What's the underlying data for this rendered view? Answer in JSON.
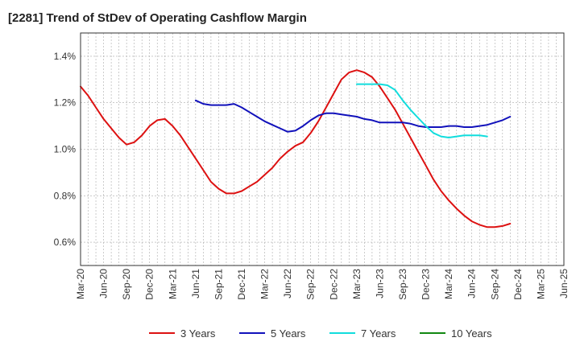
{
  "chart_data": {
    "type": "line",
    "title": "[2281]  Trend of StDev of Operating Cashflow Margin",
    "xlabel": "",
    "ylabel": "",
    "x_ticks": [
      "Mar-20",
      "Jun-20",
      "Sep-20",
      "Dec-20",
      "Mar-21",
      "Jun-21",
      "Sep-21",
      "Dec-21",
      "Mar-22",
      "Jun-22",
      "Sep-22",
      "Dec-22",
      "Mar-23",
      "Jun-23",
      "Sep-23",
      "Dec-23",
      "Mar-24",
      "Jun-24",
      "Sep-24",
      "Dec-24",
      "Mar-25",
      "Jun-25"
    ],
    "y_ticks": [
      0.6,
      0.8,
      1.0,
      1.2,
      1.4
    ],
    "y_tick_labels": [
      "0.6%",
      "0.8%",
      "1.0%",
      "1.2%",
      "1.4%"
    ],
    "ylim": [
      0.5,
      1.5
    ],
    "grid": true,
    "legend_position": "bottom",
    "series": [
      {
        "name": "3 Years",
        "color": "#dd1111",
        "points": [
          [
            "Mar-20",
            1.27
          ],
          [
            "Apr-20",
            1.23
          ],
          [
            "May-20",
            1.18
          ],
          [
            "Jun-20",
            1.13
          ],
          [
            "Jul-20",
            1.09
          ],
          [
            "Aug-20",
            1.05
          ],
          [
            "Sep-20",
            1.02
          ],
          [
            "Oct-20",
            1.03
          ],
          [
            "Nov-20",
            1.06
          ],
          [
            "Dec-20",
            1.1
          ],
          [
            "Jan-21",
            1.125
          ],
          [
            "Feb-21",
            1.13
          ],
          [
            "Mar-21",
            1.1
          ],
          [
            "Apr-21",
            1.06
          ],
          [
            "May-21",
            1.01
          ],
          [
            "Jun-21",
            0.96
          ],
          [
            "Jul-21",
            0.91
          ],
          [
            "Aug-21",
            0.86
          ],
          [
            "Sep-21",
            0.83
          ],
          [
            "Oct-21",
            0.81
          ],
          [
            "Nov-21",
            0.81
          ],
          [
            "Dec-21",
            0.82
          ],
          [
            "Jan-22",
            0.84
          ],
          [
            "Feb-22",
            0.86
          ],
          [
            "Mar-22",
            0.89
          ],
          [
            "Apr-22",
            0.92
          ],
          [
            "May-22",
            0.96
          ],
          [
            "Jun-22",
            0.99
          ],
          [
            "Jul-22",
            1.015
          ],
          [
            "Aug-22",
            1.03
          ],
          [
            "Sep-22",
            1.07
          ],
          [
            "Oct-22",
            1.12
          ],
          [
            "Nov-22",
            1.18
          ],
          [
            "Dec-22",
            1.24
          ],
          [
            "Jan-23",
            1.3
          ],
          [
            "Feb-23",
            1.33
          ],
          [
            "Mar-23",
            1.34
          ],
          [
            "Apr-23",
            1.33
          ],
          [
            "May-23",
            1.31
          ],
          [
            "Jun-23",
            1.27
          ],
          [
            "Jul-23",
            1.22
          ],
          [
            "Aug-23",
            1.17
          ],
          [
            "Sep-23",
            1.11
          ],
          [
            "Oct-23",
            1.05
          ],
          [
            "Nov-23",
            0.99
          ],
          [
            "Dec-23",
            0.93
          ],
          [
            "Jan-24",
            0.87
          ],
          [
            "Feb-24",
            0.82
          ],
          [
            "Mar-24",
            0.78
          ],
          [
            "Apr-24",
            0.745
          ],
          [
            "May-24",
            0.715
          ],
          [
            "Jun-24",
            0.69
          ],
          [
            "Jul-24",
            0.675
          ],
          [
            "Aug-24",
            0.665
          ],
          [
            "Sep-24",
            0.665
          ],
          [
            "Oct-24",
            0.67
          ],
          [
            "Nov-24",
            0.68
          ]
        ]
      },
      {
        "name": "5 Years",
        "color": "#1111bb",
        "points": [
          [
            "Jun-21",
            1.21
          ],
          [
            "Jul-21",
            1.195
          ],
          [
            "Aug-21",
            1.19
          ],
          [
            "Sep-21",
            1.19
          ],
          [
            "Oct-21",
            1.19
          ],
          [
            "Nov-21",
            1.195
          ],
          [
            "Dec-21",
            1.18
          ],
          [
            "Jan-22",
            1.16
          ],
          [
            "Feb-22",
            1.14
          ],
          [
            "Mar-22",
            1.12
          ],
          [
            "Apr-22",
            1.105
          ],
          [
            "May-22",
            1.09
          ],
          [
            "Jun-22",
            1.075
          ],
          [
            "Jul-22",
            1.08
          ],
          [
            "Aug-22",
            1.1
          ],
          [
            "Sep-22",
            1.125
          ],
          [
            "Oct-22",
            1.145
          ],
          [
            "Nov-22",
            1.155
          ],
          [
            "Dec-22",
            1.155
          ],
          [
            "Jan-23",
            1.15
          ],
          [
            "Feb-23",
            1.145
          ],
          [
            "Mar-23",
            1.14
          ],
          [
            "Apr-23",
            1.13
          ],
          [
            "May-23",
            1.125
          ],
          [
            "Jun-23",
            1.115
          ],
          [
            "Jul-23",
            1.115
          ],
          [
            "Aug-23",
            1.115
          ],
          [
            "Sep-23",
            1.115
          ],
          [
            "Oct-23",
            1.11
          ],
          [
            "Nov-23",
            1.1
          ],
          [
            "Dec-23",
            1.095
          ],
          [
            "Jan-24",
            1.095
          ],
          [
            "Feb-24",
            1.095
          ],
          [
            "Mar-24",
            1.1
          ],
          [
            "Apr-24",
            1.1
          ],
          [
            "May-24",
            1.095
          ],
          [
            "Jun-24",
            1.095
          ],
          [
            "Jul-24",
            1.1
          ],
          [
            "Aug-24",
            1.105
          ],
          [
            "Sep-24",
            1.115
          ],
          [
            "Oct-24",
            1.125
          ],
          [
            "Nov-24",
            1.14
          ]
        ]
      },
      {
        "name": "7 Years",
        "color": "#11dddd",
        "points": [
          [
            "Mar-23",
            1.28
          ],
          [
            "Apr-23",
            1.28
          ],
          [
            "May-23",
            1.28
          ],
          [
            "Jun-23",
            1.28
          ],
          [
            "Jul-23",
            1.275
          ],
          [
            "Aug-23",
            1.255
          ],
          [
            "Sep-23",
            1.21
          ],
          [
            "Oct-23",
            1.17
          ],
          [
            "Nov-23",
            1.135
          ],
          [
            "Dec-23",
            1.1
          ],
          [
            "Jan-24",
            1.07
          ],
          [
            "Feb-24",
            1.055
          ],
          [
            "Mar-24",
            1.05
          ],
          [
            "Apr-24",
            1.055
          ],
          [
            "May-24",
            1.06
          ],
          [
            "Jun-24",
            1.06
          ],
          [
            "Jul-24",
            1.06
          ],
          [
            "Aug-24",
            1.055
          ]
        ]
      },
      {
        "name": "10 Years",
        "color": "#118811",
        "points": []
      }
    ]
  }
}
